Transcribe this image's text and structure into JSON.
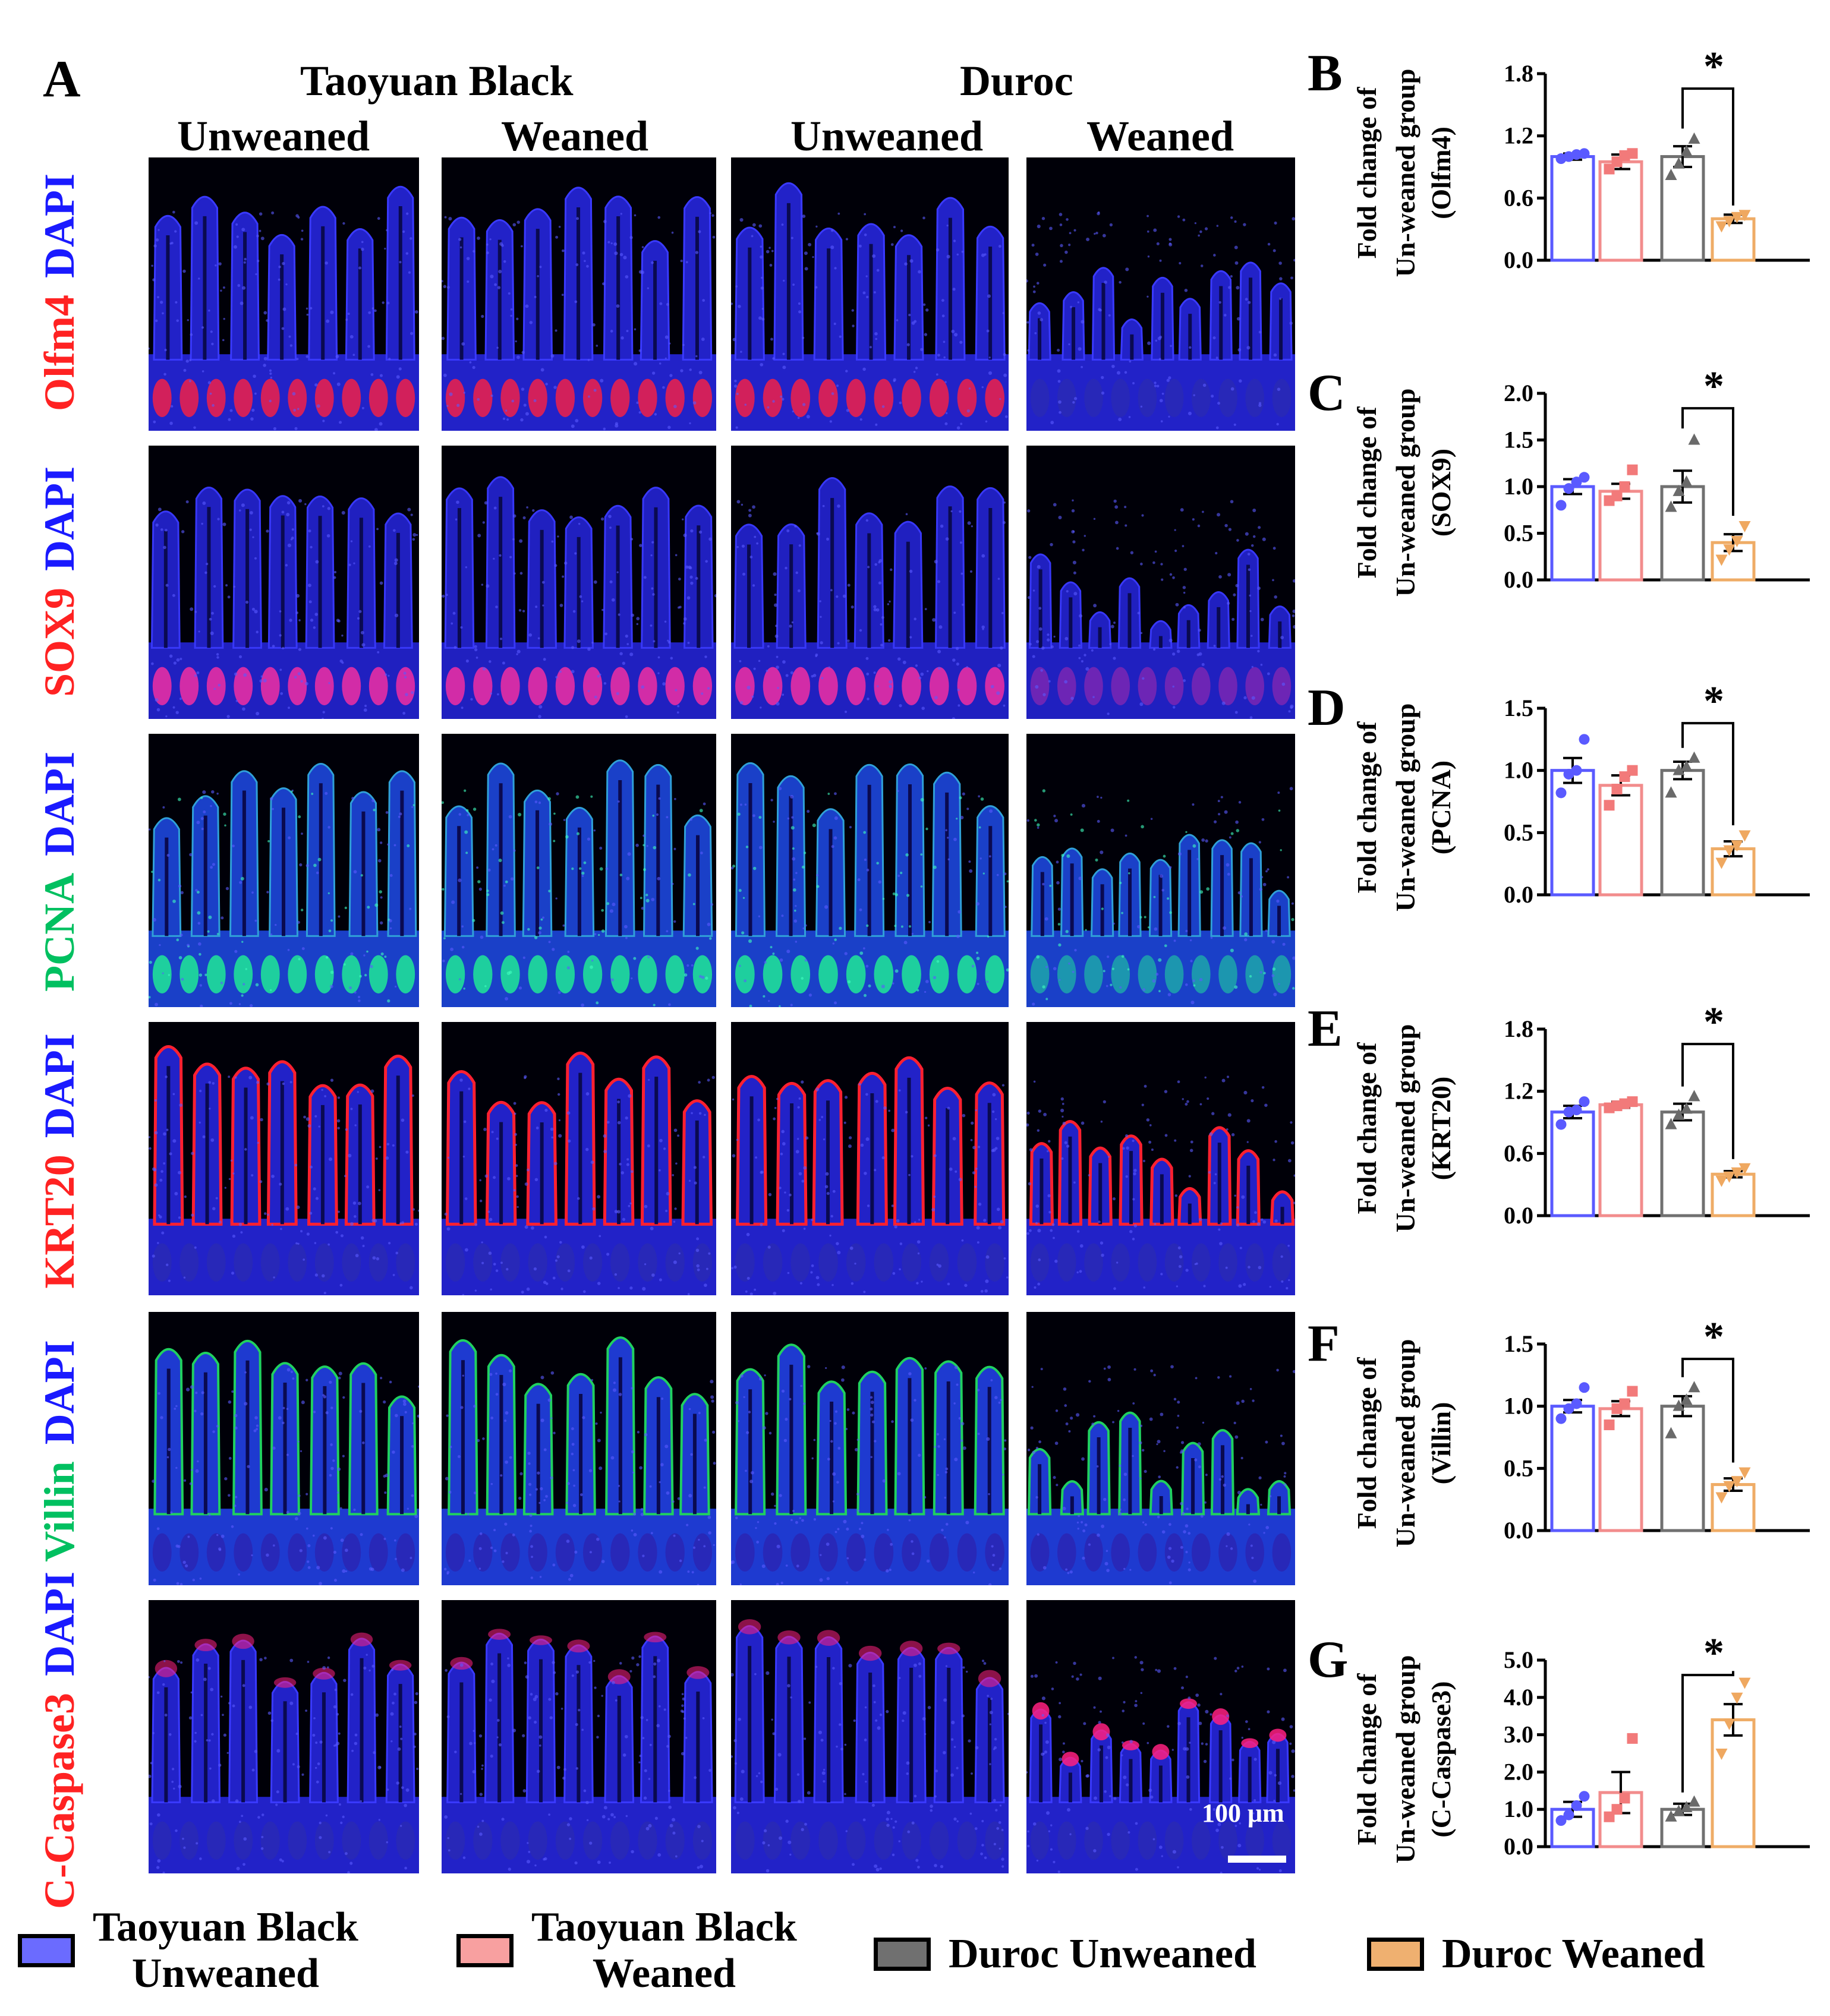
{
  "panel_a": {
    "letter": "A",
    "strains": [
      "Taoyuan Black",
      "Duroc"
    ],
    "conditions": [
      "Unweaned",
      "Weaned",
      "Unweaned",
      "Weaned"
    ],
    "rows": [
      {
        "marker": "Olfm4",
        "marker_color": "#ff2222",
        "counter": "DAPI",
        "counter_color": "#1a1aff"
      },
      {
        "marker": "SOX9",
        "marker_color": "#ff2222",
        "counter": "DAPI",
        "counter_color": "#1a1aff"
      },
      {
        "marker": "PCNA",
        "marker_color": "#00c060",
        "counter": "DAPI",
        "counter_color": "#1a1aff"
      },
      {
        "marker": "KRT20",
        "marker_color": "#ff2222",
        "counter": "DAPI",
        "counter_color": "#1a1aff"
      },
      {
        "marker": "Villin",
        "marker_color": "#00c060",
        "counter": "DAPI",
        "counter_color": "#1a1aff"
      },
      {
        "marker": "C-Caspase3",
        "marker_color": "#ff2222",
        "counter": "DAPI",
        "counter_color": "#1a1aff"
      }
    ],
    "scale_bar": "100 μm"
  },
  "chart_data": [
    {
      "panel": "B",
      "type": "bar",
      "ylabel_line1": "Fold change of",
      "ylabel_line2": "Un-weaned group",
      "ylabel_line3": "(Olfm4)",
      "categories": [
        "Taoyuan Black Unweaned",
        "Taoyuan Black Weaned",
        "Duroc Unweaned",
        "Duroc Weaned"
      ],
      "values": [
        1.0,
        0.95,
        1.0,
        0.4
      ],
      "errors": [
        0.03,
        0.07,
        0.1,
        0.04
      ],
      "points": [
        [
          0.98,
          1.0,
          1.02,
          1.03
        ],
        [
          0.88,
          0.95,
          1.01,
          1.03
        ],
        [
          0.82,
          0.93,
          1.05,
          1.17
        ],
        [
          0.33,
          0.38,
          0.42,
          0.44
        ]
      ],
      "ylim": [
        0,
        1.8
      ],
      "yticks": [
        "0.0",
        "0.6",
        "1.2",
        "1.8"
      ],
      "significance": "*"
    },
    {
      "panel": "C",
      "type": "bar",
      "ylabel_line1": "Fold change of",
      "ylabel_line2": "Un-weaned group",
      "ylabel_line3": "(SOX9)",
      "categories": [
        "Taoyuan Black Unweaned",
        "Taoyuan Black Weaned",
        "Duroc Unweaned",
        "Duroc Weaned"
      ],
      "values": [
        1.0,
        0.95,
        1.0,
        0.4
      ],
      "errors": [
        0.08,
        0.08,
        0.17,
        0.09
      ],
      "points": [
        [
          0.8,
          0.98,
          1.05,
          1.1
        ],
        [
          0.85,
          0.9,
          1.0,
          1.18
        ],
        [
          0.78,
          0.95,
          1.05,
          1.5
        ],
        [
          0.22,
          0.33,
          0.42,
          0.58
        ]
      ],
      "ylim": [
        0,
        2.0
      ],
      "yticks": [
        "0.0",
        "0.5",
        "1.0",
        "1.5",
        "2.0"
      ],
      "significance": "*"
    },
    {
      "panel": "D",
      "type": "bar",
      "ylabel_line1": "Fold change of",
      "ylabel_line2": "Un-weaned group",
      "ylabel_line3": "(PCNA)",
      "categories": [
        "Taoyuan Black Unweaned",
        "Taoyuan Black Weaned",
        "Duroc Unweaned",
        "Duroc Weaned"
      ],
      "values": [
        1.0,
        0.88,
        1.0,
        0.37
      ],
      "errors": [
        0.1,
        0.08,
        0.07,
        0.06
      ],
      "points": [
        [
          0.82,
          0.97,
          1.0,
          1.25
        ],
        [
          0.72,
          0.85,
          0.95,
          1.0
        ],
        [
          0.82,
          1.0,
          1.03,
          1.1
        ],
        [
          0.26,
          0.36,
          0.4,
          0.48
        ]
      ],
      "ylim": [
        0,
        1.5
      ],
      "yticks": [
        "0.0",
        "0.5",
        "1.0",
        "1.5"
      ],
      "significance": "*"
    },
    {
      "panel": "E",
      "type": "bar",
      "ylabel_line1": "Fold change of",
      "ylabel_line2": "Un-weaned group",
      "ylabel_line3": "(KRT20)",
      "categories": [
        "Taoyuan Black Unweaned",
        "Taoyuan Black Weaned",
        "Duroc Unweaned",
        "Duroc Weaned"
      ],
      "values": [
        1.0,
        1.07,
        1.0,
        0.4
      ],
      "errors": [
        0.06,
        0.03,
        0.08,
        0.03
      ],
      "points": [
        [
          0.88,
          1.0,
          1.02,
          1.1
        ],
        [
          1.04,
          1.06,
          1.08,
          1.1
        ],
        [
          0.88,
          0.97,
          1.03,
          1.15
        ],
        [
          0.34,
          0.38,
          0.42,
          0.46
        ]
      ],
      "ylim": [
        0,
        1.8
      ],
      "yticks": [
        "0.0",
        "0.6",
        "1.2",
        "1.8"
      ],
      "significance": "*"
    },
    {
      "panel": "F",
      "type": "bar",
      "ylabel_line1": "Fold change of",
      "ylabel_line2": "Un-weaned group",
      "ylabel_line3": "(Villin)",
      "categories": [
        "Taoyuan Black Unweaned",
        "Taoyuan Black Weaned",
        "Duroc Unweaned",
        "Duroc Weaned"
      ],
      "values": [
        1.0,
        0.98,
        1.0,
        0.37
      ],
      "errors": [
        0.05,
        0.06,
        0.08,
        0.05
      ],
      "points": [
        [
          0.9,
          0.98,
          1.02,
          1.15
        ],
        [
          0.85,
          0.98,
          1.02,
          1.12
        ],
        [
          0.78,
          1.0,
          1.05,
          1.15
        ],
        [
          0.27,
          0.36,
          0.4,
          0.47
        ]
      ],
      "ylim": [
        0,
        1.5
      ],
      "yticks": [
        "0.0",
        "0.5",
        "1.0",
        "1.5"
      ],
      "significance": "*"
    },
    {
      "panel": "G",
      "type": "bar",
      "ylabel_line1": "Fold change of",
      "ylabel_line2": "Un-weaned group",
      "ylabel_line3": "(C-Caspase3)",
      "categories": [
        "Taoyuan Black Unweaned",
        "Taoyuan Black Weaned",
        "Duroc Unweaned",
        "Duroc Weaned"
      ],
      "values": [
        1.0,
        1.45,
        1.0,
        3.4
      ],
      "errors": [
        0.2,
        0.55,
        0.15,
        0.42
      ],
      "points": [
        [
          0.7,
          0.85,
          1.1,
          1.35
        ],
        [
          0.8,
          1.0,
          1.3,
          2.9
        ],
        [
          0.8,
          0.95,
          1.05,
          1.2
        ],
        [
          2.5,
          3.3,
          4.0,
          4.4
        ]
      ],
      "ylim": [
        0,
        5.0
      ],
      "yticks": [
        "0.0",
        "1.0",
        "2.0",
        "3.0",
        "4.0",
        "5.0"
      ],
      "significance": "*"
    }
  ],
  "legend": {
    "items": [
      {
        "line1": "Taoyuan Black",
        "line2": "Unweaned",
        "color": "#6b6bff",
        "border": "#5050ff"
      },
      {
        "line1": "Taoyuan Black",
        "line2": "Weaned",
        "color": "#f8a0a0",
        "border": "#f07f7f"
      },
      {
        "line1": "Duroc Unweaned",
        "line2": "",
        "color": "#707070",
        "border": "#555555"
      },
      {
        "line1": "Duroc Weaned",
        "line2": "",
        "color": "#efb070",
        "border": "#e8a35a"
      }
    ]
  }
}
